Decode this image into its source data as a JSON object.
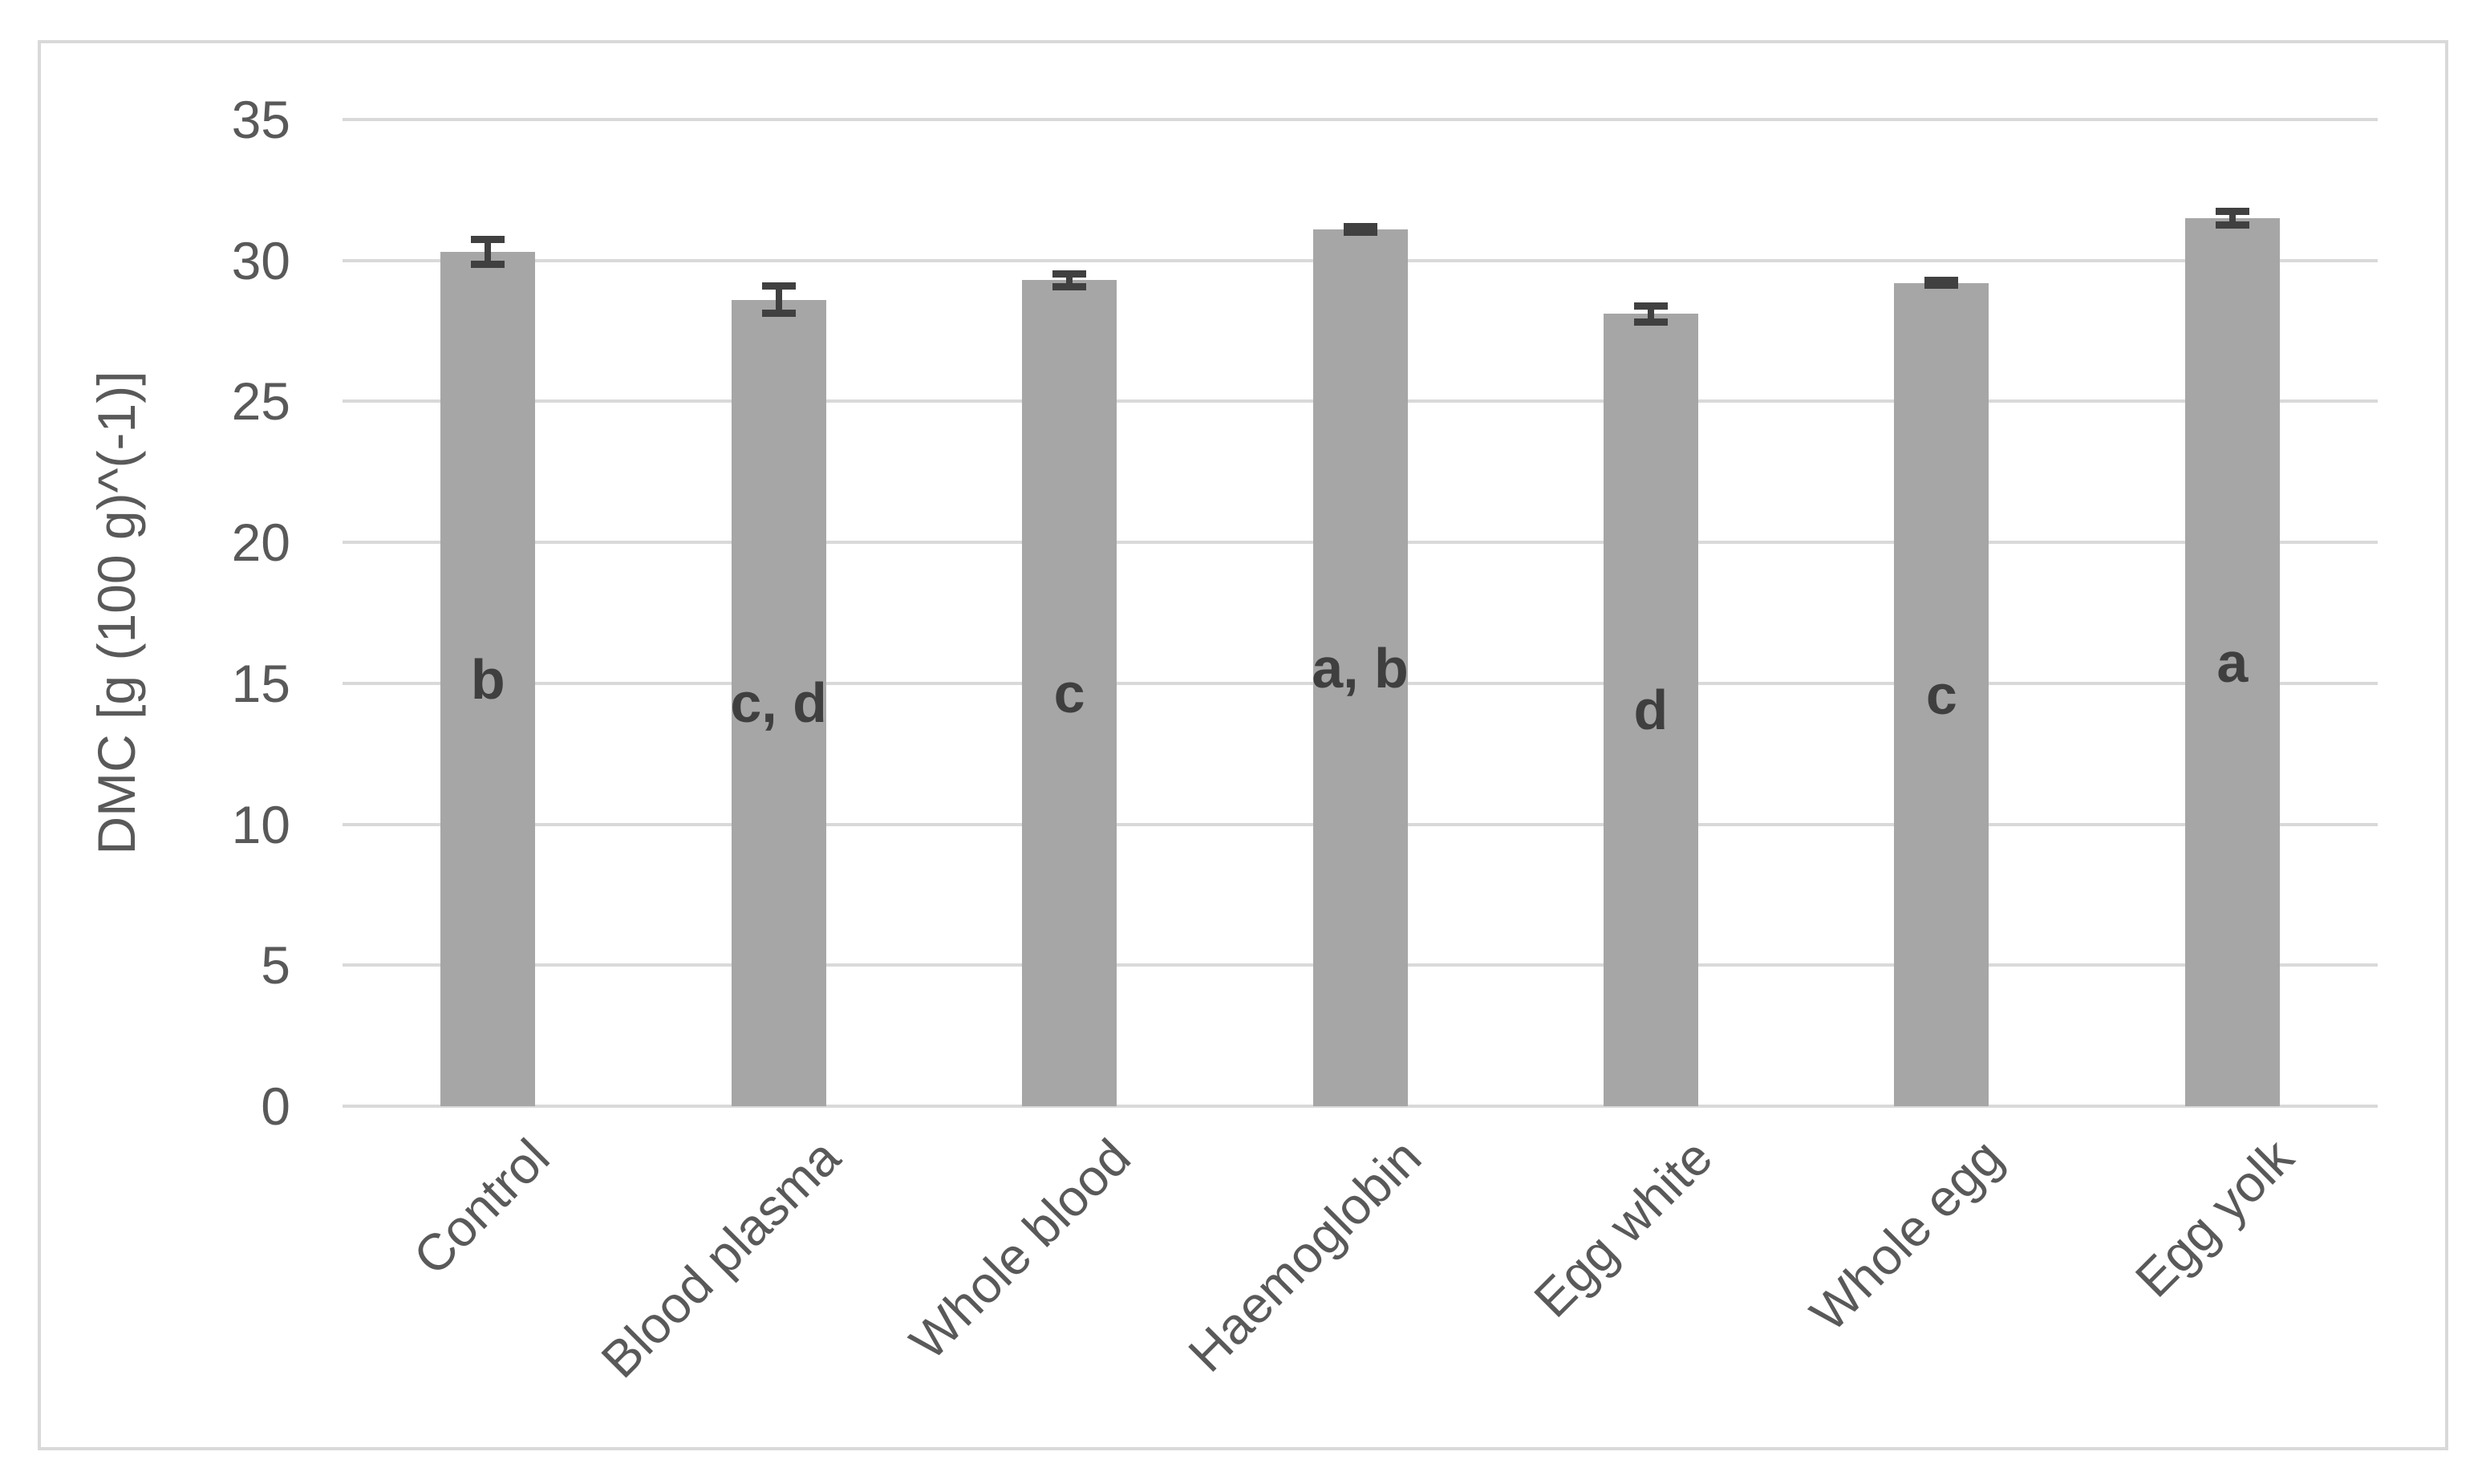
{
  "chart_data": {
    "type": "bar",
    "title": "",
    "xlabel": "",
    "ylabel": "DMC [g (100 g)^(-1)]",
    "ylim": [
      0,
      35
    ],
    "yticks": [
      0,
      5,
      10,
      15,
      20,
      25,
      30,
      35
    ],
    "grid": true,
    "legend": false,
    "categories": [
      "Control",
      "Blood plasma",
      "Whole blood",
      "Haemoglobin",
      "Egg white",
      "Whole egg",
      "Egg yolk"
    ],
    "values": [
      30.3,
      28.6,
      29.3,
      31.1,
      28.1,
      29.2,
      31.5
    ],
    "error_bars": [
      0.45,
      0.5,
      0.25,
      0.12,
      0.3,
      0.1,
      0.25
    ],
    "significance_letters": [
      "b",
      "c, d",
      "c",
      "a, b",
      "d",
      "c",
      "a"
    ],
    "bar_color": "#a6a6a6",
    "error_bar_color": "#404040",
    "letter_color": "#3f3f3f",
    "gridline_color": "#d9d9d9",
    "tick_label_color": "#595959",
    "frame_border_color": "#d9d9d9",
    "background_color": "#ffffff"
  }
}
